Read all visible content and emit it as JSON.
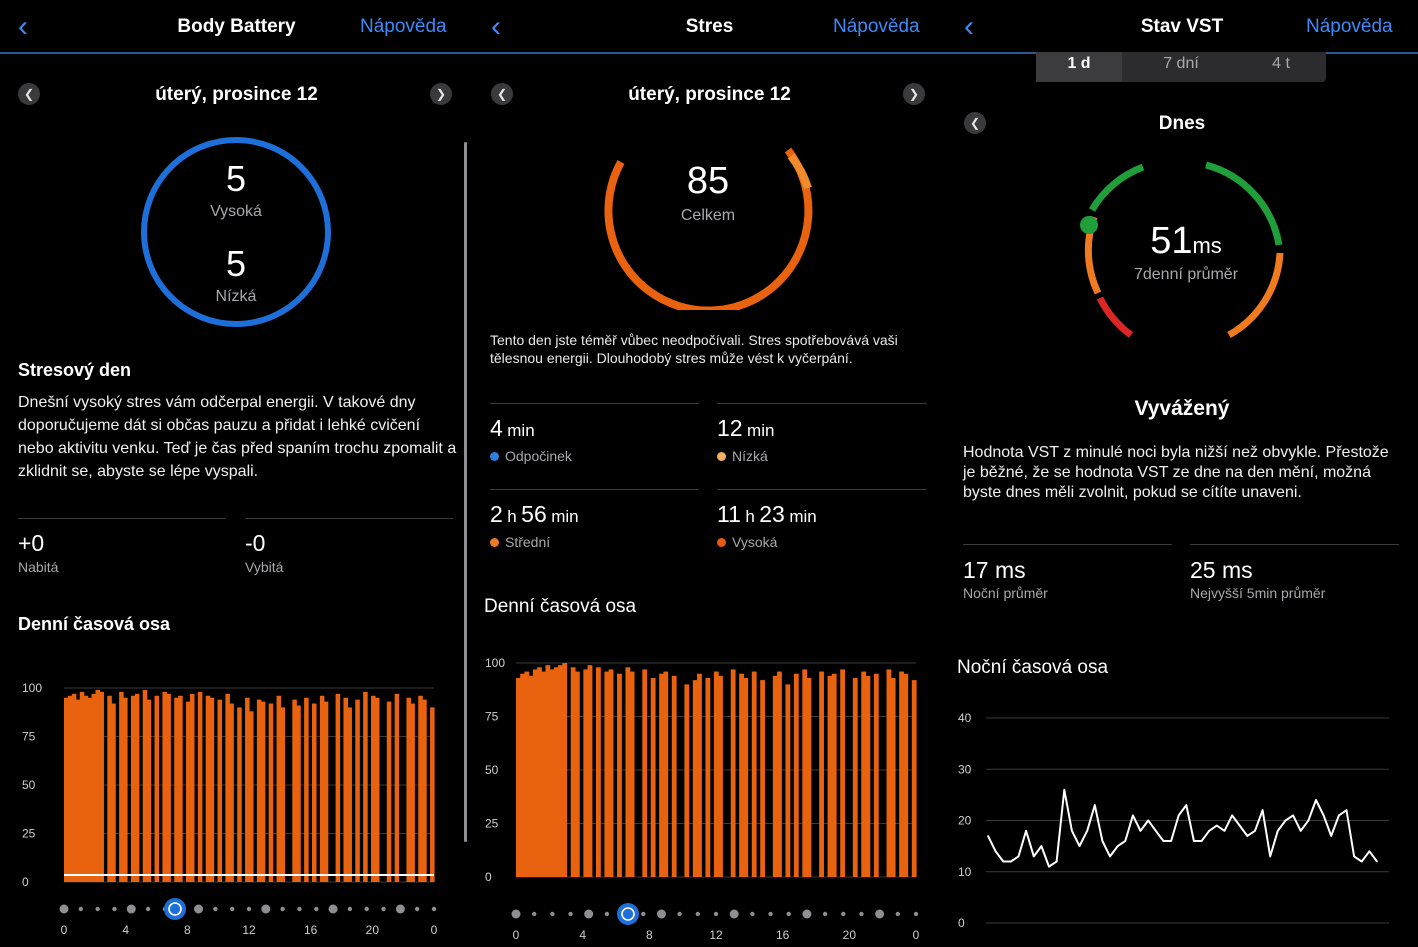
{
  "panels": {
    "body_battery": {
      "header": {
        "title": "Body Battery",
        "help": "Nápověda"
      },
      "date": "úterý, prosince 12",
      "ring": {
        "high_value": "5",
        "high_label": "Vysoká",
        "low_value": "5",
        "low_label": "Nízká",
        "color": "#1e6fd9"
      },
      "insight": {
        "title": "Stresový den",
        "text": "Dnešní vysoký stres vám odčerpal energii. V takové dny doporučujeme dát si občas pauzu a přidat i lehké cvičení nebo aktivitu venku. Teď je čas před spaním trochu zpomalit a zklidnit se, abyste se lépe vyspali."
      },
      "stats": [
        {
          "value": "+0",
          "label": "Nabitá"
        },
        {
          "value": "-0",
          "label": "Vybitá"
        }
      ],
      "timeline_title": "Denní časová osa"
    },
    "stress": {
      "header": {
        "title": "Stres",
        "help": "Nápověda"
      },
      "date": "úterý, prosince 12",
      "gauge": {
        "value": "85",
        "label": "Celkem",
        "color": "#e8620f"
      },
      "text": "Tento den jste téměř vůbec neodpočívali. Stres spotřebovává vaši tělesnou energii. Dlouhodobý stres může vést k vyčerpání.",
      "stats": [
        {
          "num1": "4",
          "unit1": "min",
          "num2": "",
          "unit2": "",
          "label": "Odpočinek",
          "color": "#2f7fe0"
        },
        {
          "num1": "12",
          "unit1": "min",
          "num2": "",
          "unit2": "",
          "label": "Nízká",
          "color": "#f5b062"
        },
        {
          "num1": "2",
          "unit1": "h",
          "num2": "56",
          "unit2": "min",
          "label": "Střední",
          "color": "#f07a20"
        },
        {
          "num1": "11",
          "unit1": "h",
          "num2": "23",
          "unit2": "min",
          "label": "Vysoká",
          "color": "#e85a10"
        }
      ],
      "timeline_title": "Denní časová osa"
    },
    "hrv": {
      "header": {
        "title": "Stav VST",
        "help": "Nápověda"
      },
      "segments": [
        "1 d",
        "7 dní",
        "4 t"
      ],
      "selected_segment": "1 d",
      "day_label": "Dnes",
      "gauge": {
        "value": "51",
        "unit": "ms",
        "label": "7denní průměr"
      },
      "status": "Vyvážený",
      "text": "Hodnota VST z minulé noci byla nižší než obvykle. Přestože je běžné, že se hodnota VST ze dne na den mění, možná byste dnes měli zvolnit, pokud se cítíte unaveni.",
      "stats": [
        {
          "value": "17 ms",
          "label": "Noční průměr"
        },
        {
          "value": "25 ms",
          "label": "Nejvyšší 5min průměr"
        }
      ],
      "timeline_title": "Noční časová osa"
    }
  },
  "chart_data": [
    {
      "type": "bar",
      "panel": "body_battery",
      "ylim": [
        0,
        100
      ],
      "yticks": [
        0,
        25,
        50,
        75,
        100
      ],
      "xticks": [
        "0",
        "4",
        "8",
        "12",
        "16",
        "20",
        "0"
      ],
      "bar_color": "#e8620f",
      "values": [
        95,
        96,
        97,
        94,
        98,
        96,
        95,
        97,
        99,
        98,
        0,
        96,
        92,
        0,
        98,
        95,
        0,
        96,
        97,
        0,
        99,
        94,
        0,
        96,
        0,
        98,
        97,
        0,
        95,
        96,
        0,
        93,
        97,
        0,
        98,
        0,
        96,
        95,
        0,
        94,
        0,
        97,
        92,
        0,
        90,
        0,
        95,
        88,
        0,
        94,
        93,
        0,
        92,
        0,
        96,
        90,
        0,
        0,
        94,
        91,
        0,
        95,
        0,
        92,
        0,
        96,
        93,
        0,
        0,
        97,
        0,
        95,
        90,
        0,
        94,
        0,
        98,
        0,
        96,
        95,
        0,
        0,
        93,
        0,
        97,
        0,
        0,
        95,
        92,
        0,
        96,
        94,
        0,
        90
      ]
    },
    {
      "type": "bar",
      "panel": "stress",
      "ylim": [
        0,
        100
      ],
      "yticks": [
        0,
        25,
        50,
        75,
        100
      ],
      "xticks": [
        "0",
        "4",
        "8",
        "12",
        "16",
        "20",
        "0"
      ],
      "bar_color": "#e8620f",
      "values": [
        93,
        95,
        96,
        94,
        97,
        98,
        96,
        99,
        97,
        98,
        99,
        100,
        0,
        98,
        96,
        0,
        97,
        99,
        0,
        98,
        0,
        96,
        97,
        0,
        95,
        0,
        98,
        96,
        0,
        0,
        97,
        0,
        93,
        0,
        95,
        96,
        0,
        94,
        0,
        0,
        90,
        0,
        92,
        95,
        0,
        93,
        0,
        96,
        94,
        0,
        0,
        97,
        0,
        95,
        93,
        0,
        96,
        0,
        92,
        0,
        0,
        94,
        96,
        0,
        90,
        0,
        95,
        0,
        97,
        93,
        0,
        0,
        96,
        0,
        94,
        95,
        0,
        97,
        0,
        0,
        93,
        0,
        96,
        94,
        0,
        95,
        0,
        0,
        97,
        93,
        0,
        96,
        95,
        0,
        92
      ]
    },
    {
      "type": "line",
      "panel": "hrv",
      "ylim": [
        0,
        40
      ],
      "yticks": [
        0,
        10,
        20,
        30,
        40
      ],
      "line_color": "#ffffff",
      "values": [
        17,
        14,
        12,
        12,
        13,
        18,
        13,
        15,
        11,
        12,
        26,
        18,
        15,
        18,
        23,
        16,
        13,
        15,
        16,
        21,
        18,
        20,
        18,
        16,
        16,
        21,
        23,
        16,
        16,
        18,
        19,
        18,
        21,
        19,
        17,
        18,
        22,
        13,
        18,
        20,
        21,
        18,
        20,
        24,
        21,
        17,
        21,
        22,
        13,
        12,
        14,
        12
      ]
    }
  ]
}
